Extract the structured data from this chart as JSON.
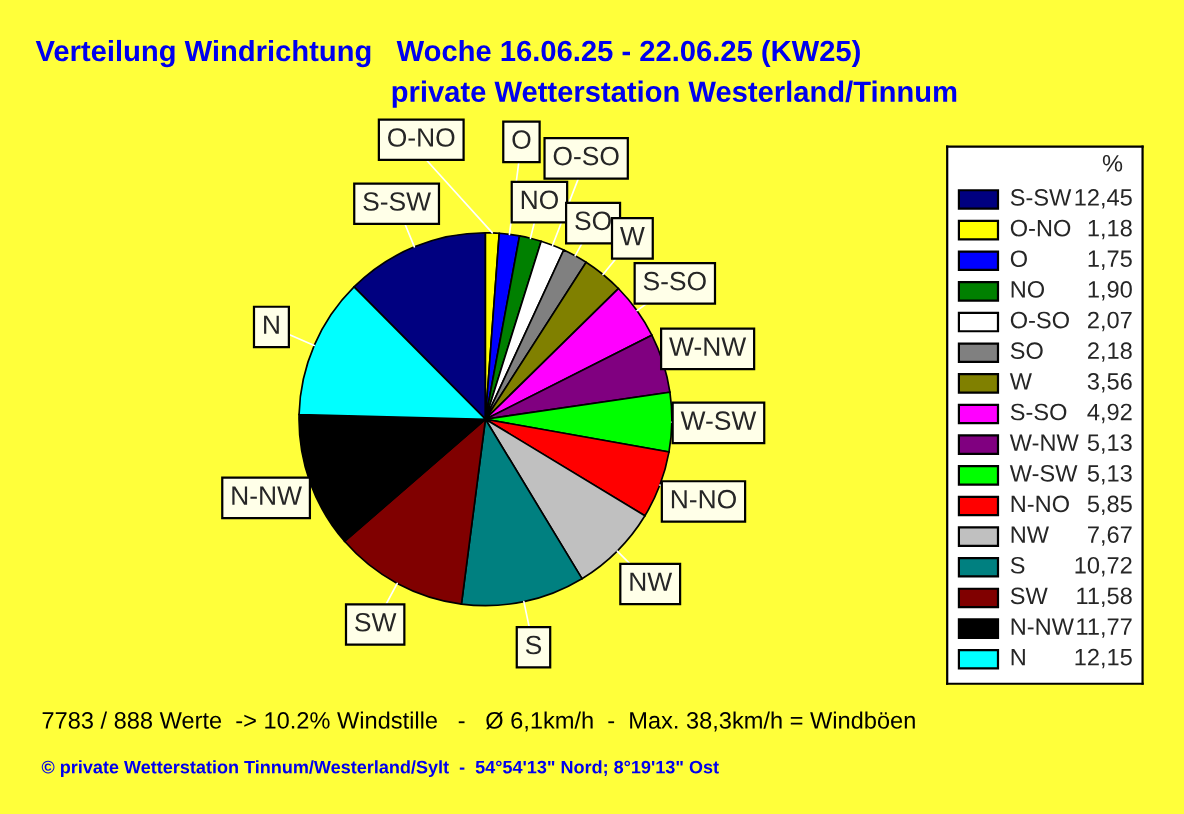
{
  "chart_data": {
    "type": "pie",
    "title": "Verteilung Windrichtung   Woche 16.06.25 - 22.06.25 (KW25)",
    "subtitle": "private Wetterstation Westerland/Tinnum",
    "legend_title": "%",
    "legend": "right",
    "categories": [
      "S-SW",
      "O-NO",
      "O",
      "NO",
      "O-SO",
      "SO",
      "W",
      "S-SO",
      "W-NW",
      "W-SW",
      "N-NO",
      "NW",
      "S",
      "SW",
      "N-NW",
      "N"
    ],
    "values": [
      12.45,
      1.18,
      1.75,
      1.9,
      2.07,
      2.18,
      3.56,
      4.92,
      5.13,
      5.13,
      5.85,
      7.67,
      10.72,
      11.58,
      11.77,
      12.15
    ],
    "value_labels": [
      "12,45",
      "1,18",
      "1,75",
      "1,90",
      "2,07",
      "2,18",
      "3,56",
      "4,92",
      "5,13",
      "5,13",
      "5,85",
      "7,67",
      "10,72",
      "11,58",
      "11,77",
      "12,15"
    ],
    "colors": [
      "#000080",
      "#ffff00",
      "#0000ff",
      "#008000",
      "#ffffff",
      "#808080",
      "#808000",
      "#ff00ff",
      "#800080",
      "#00ff00",
      "#ff0000",
      "#c0c0c0",
      "#008080",
      "#800000",
      "#000000",
      "#00ffff"
    ],
    "annotations": [
      "7783 / 888 Werte  -> 10.2% Windstille   -   Ø 6,1km/h  -  Max. 38,3km/h = Windböen",
      "© private Wetterstation Tinnum/Westerland/Sylt  -  54°54'13\" Nord; 8°19'13\" Ost"
    ]
  }
}
